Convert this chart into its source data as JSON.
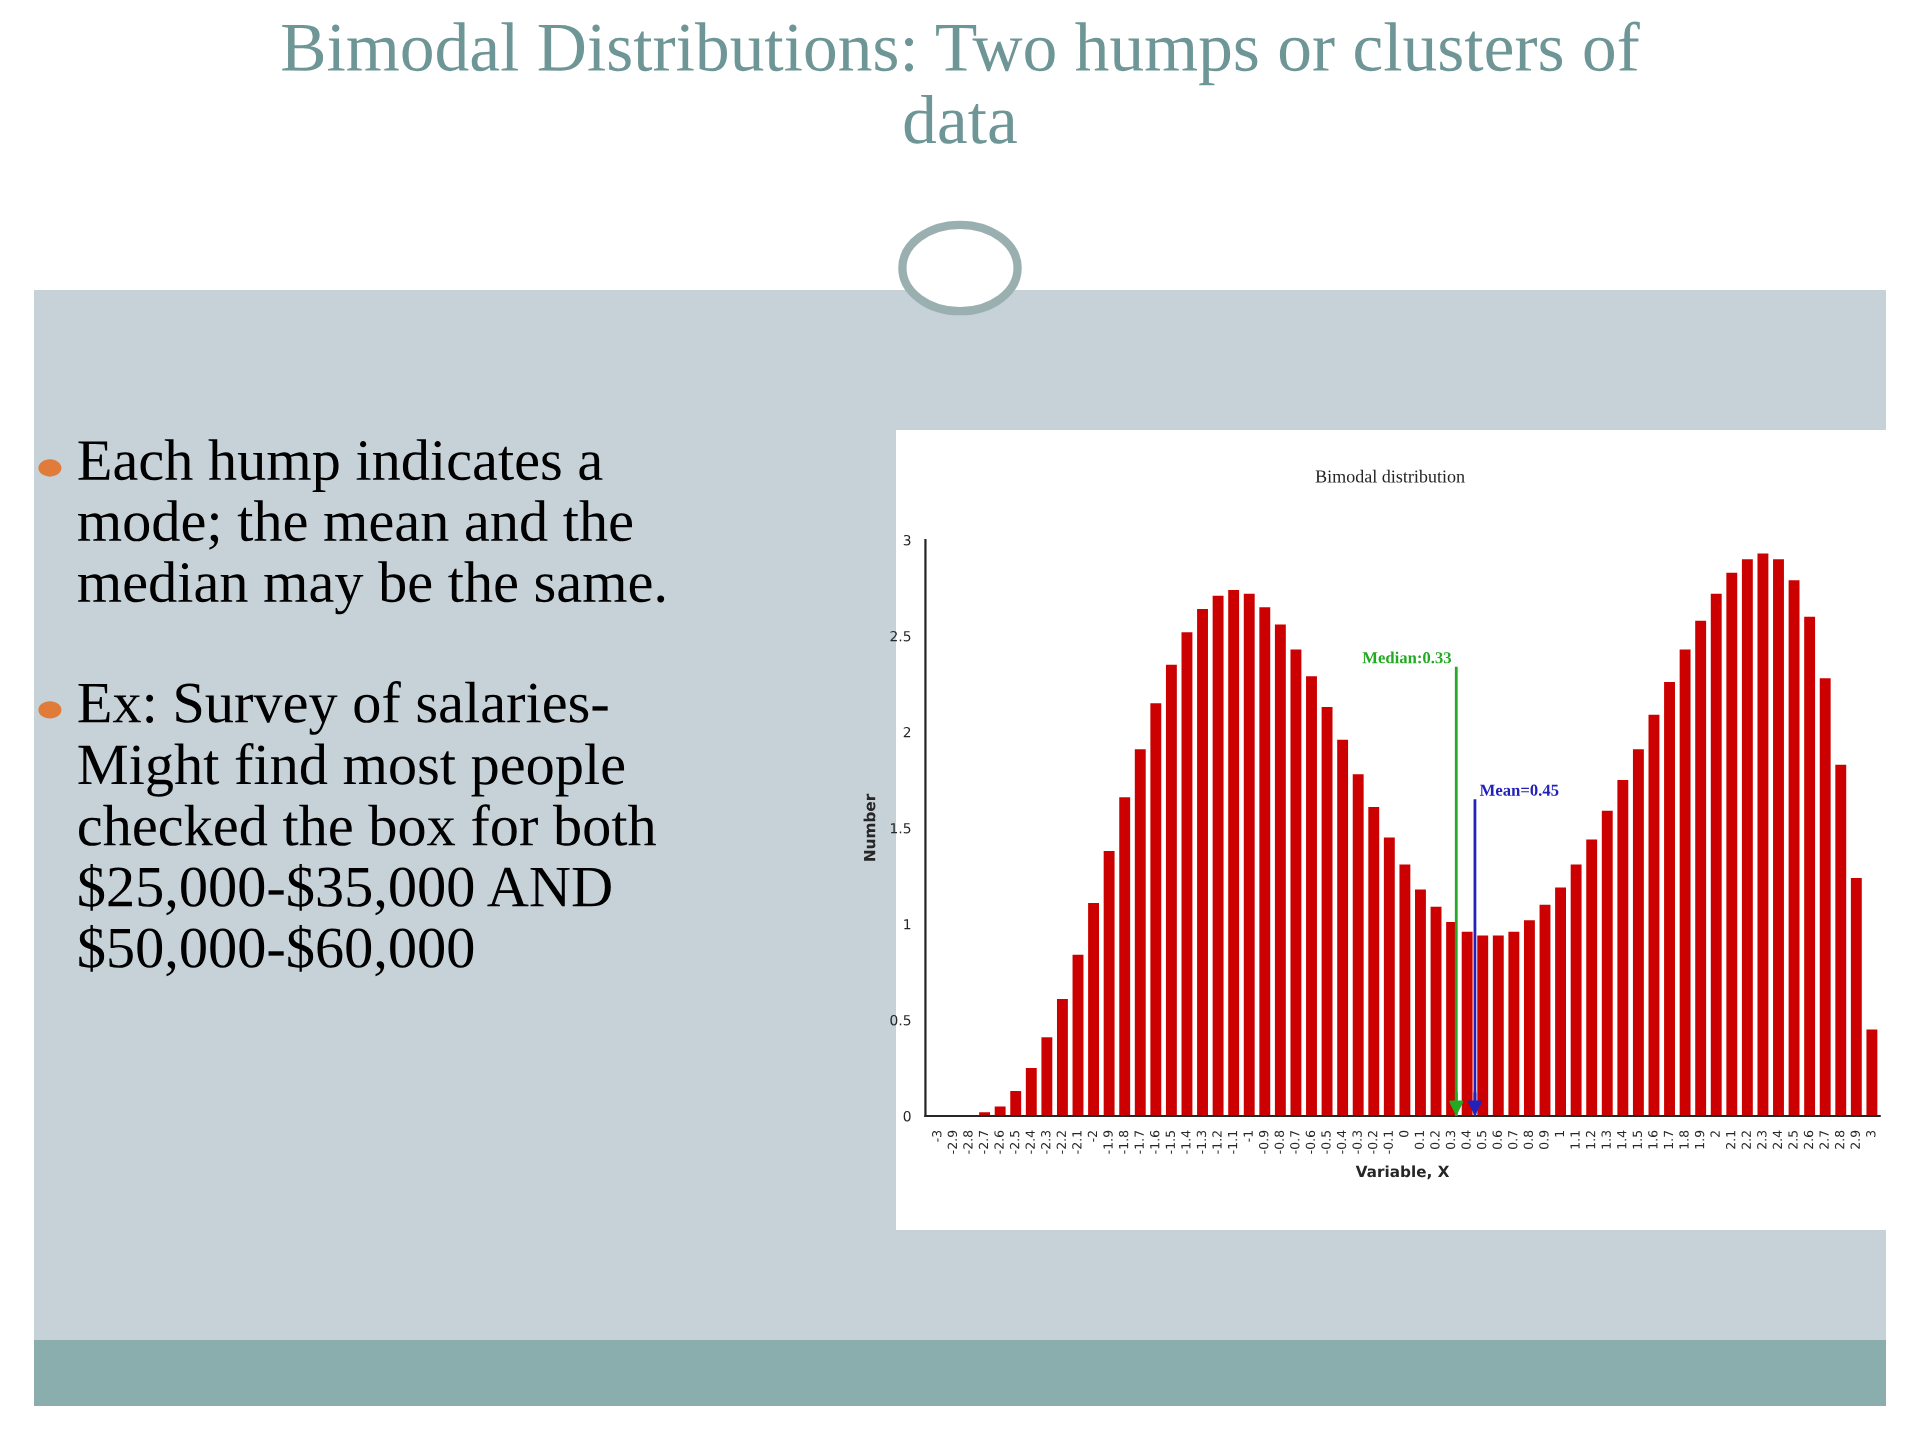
{
  "chart_data": {
    "type": "bar",
    "title": "Bimodal Distributions: Two humps or clusters of data",
    "subtitle": "Bimodal distribution",
    "xlabel": "Variable, X",
    "ylabel": "Number",
    "x": [
      -3,
      -2.9,
      -2.8,
      -2.7,
      -2.6,
      -2.5,
      -2.4,
      -2.3,
      -2.2,
      -2.1,
      -2,
      -1.9,
      -1.8,
      -1.7,
      -1.6,
      -1.5,
      -1.4,
      -1.3,
      -1.2,
      -1.1,
      -1,
      -0.9,
      -0.8,
      -0.7,
      -0.6,
      -0.5,
      -0.4,
      -0.3,
      -0.2,
      -0.1,
      0,
      0.1,
      0.2,
      0.3,
      0.4,
      0.5,
      0.6,
      0.7,
      0.8,
      0.9,
      1,
      1.1,
      1.2,
      1.3,
      1.4,
      1.5,
      1.6,
      1.7,
      1.8,
      1.9,
      2,
      2.1,
      2.2,
      2.3,
      2.4,
      2.5,
      2.6,
      2.7,
      2.8,
      2.9,
      3
    ],
    "values": [
      0,
      0,
      0,
      0.02,
      0.05,
      0.13,
      0.25,
      0.41,
      0.61,
      0.84,
      1.11,
      1.38,
      1.66,
      1.91,
      2.15,
      2.35,
      2.52,
      2.64,
      2.71,
      2.74,
      2.72,
      2.65,
      2.56,
      2.43,
      2.29,
      2.13,
      1.96,
      1.78,
      1.61,
      1.45,
      1.31,
      1.18,
      1.09,
      1.01,
      0.96,
      0.94,
      0.94,
      0.96,
      1.02,
      1.1,
      1.19,
      1.31,
      1.44,
      1.59,
      1.75,
      1.91,
      2.09,
      2.26,
      2.43,
      2.58,
      2.72,
      2.83,
      2.9,
      2.93,
      2.9,
      2.79,
      2.6,
      2.28,
      1.83,
      1.24,
      0.45
    ],
    "color": "#cc0000",
    "xlim": [
      -3.08,
      3.05
    ],
    "xticks": [
      -3,
      -2.9,
      -2.8,
      -2.7,
      -2.6,
      -2.5,
      -2.4,
      -2.3,
      -2.2,
      -2.1,
      -2,
      -1.9,
      -1.8,
      -1.7,
      -1.6,
      -1.5,
      -1.4,
      -1.3,
      -1.2,
      -1.1,
      -1,
      -0.9,
      -0.8,
      -0.7,
      -0.6,
      -0.5,
      -0.4,
      -0.3,
      -0.2,
      -0.1,
      0,
      0.1,
      0.2,
      0.3,
      0.4,
      0.5,
      0.6,
      0.7,
      0.8,
      0.9,
      1,
      1.1,
      1.2,
      1.3,
      1.4,
      1.5,
      1.6,
      1.7,
      1.8,
      1.9,
      2,
      2.1,
      2.2,
      2.3,
      2.4,
      2.5,
      2.6,
      2.7,
      2.8,
      2.9,
      3
    ],
    "ylim": [
      0,
      3
    ],
    "yticks": [
      0,
      0.5,
      1,
      1.5,
      2,
      2.5,
      3
    ],
    "grid": false,
    "ref_lines": [
      {
        "axis": "x",
        "value": 0.33,
        "label": "Median:0.33",
        "color": "#22aa22"
      },
      {
        "axis": "x",
        "value": 0.45,
        "label": "Mean=0.45",
        "color": "#2222bb"
      }
    ],
    "legend": false,
    "annotations": [
      "Each hump indicates a mode; the mean and the median may be the same.",
      "Ex: Survey of salaries- Might find most people checked the box for both $25,000-$35,000 AND $50,000-$60,000"
    ]
  }
}
